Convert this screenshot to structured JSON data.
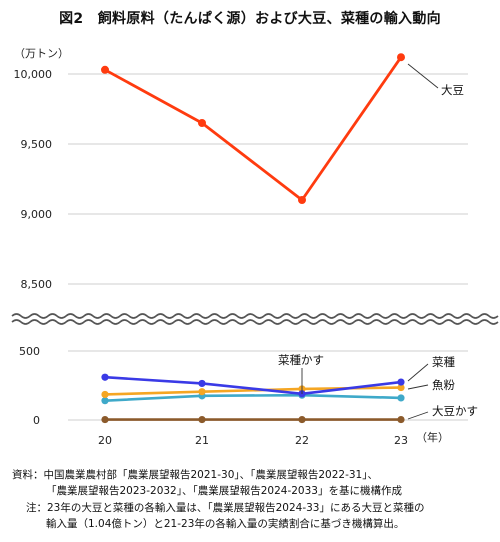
{
  "chart_data": {
    "type": "line",
    "title": "図2　飼料原料（たんぱく源）および大豆、菜種の輸入動向",
    "ylabel": "（万トン）",
    "xlabel": "（年）",
    "categories": [
      "20",
      "21",
      "22",
      "23"
    ],
    "axis_break": true,
    "upper_axis": {
      "ylim": [
        8500,
        10000
      ],
      "ticks": [
        "10,000",
        "9,500",
        "9,000",
        "8,500"
      ]
    },
    "lower_axis": {
      "ylim": [
        0,
        500
      ],
      "ticks": [
        "500",
        "0"
      ]
    },
    "grid": true,
    "series": [
      {
        "name": "大豆",
        "values": [
          10030,
          9650,
          9100,
          10120
        ],
        "color": "#ff3b0f",
        "axis": "upper"
      },
      {
        "name": "菜種",
        "values": [
          310,
          265,
          190,
          275
        ],
        "color": "#3a3ae6",
        "axis": "lower"
      },
      {
        "name": "魚粉",
        "values": [
          185,
          205,
          225,
          235
        ],
        "color": "#f5a623",
        "axis": "lower"
      },
      {
        "name": "菜種かす",
        "values": [
          140,
          175,
          180,
          160
        ],
        "color": "#3fa9c9",
        "axis": "lower"
      },
      {
        "name": "大豆かす",
        "values": [
          3,
          3,
          3,
          3
        ],
        "color": "#8b5a2b",
        "axis": "lower"
      }
    ],
    "labels": {
      "soy": "大豆",
      "rapeseed": "菜種",
      "fishmeal": "魚粉",
      "rapeseed_meal": "菜種かす",
      "soy_meal": "大豆かす"
    }
  },
  "notes": {
    "source_line1": "資料：中国農業農村部「農業展望報告2021-30」、「農業展望報告2022-31」、",
    "source_line2": "「農業展望報告2023-2032」、「農業展望報告2024-2033」を基に機構作成",
    "note_line1": "注：23年の大豆と菜種の各輸入量は、「農業展望報告2024-33」にある大豆と菜種の",
    "note_line2": "輸入量（1.04億トン）と21-23年の各輸入量の実績割合に基づき機構算出。"
  }
}
